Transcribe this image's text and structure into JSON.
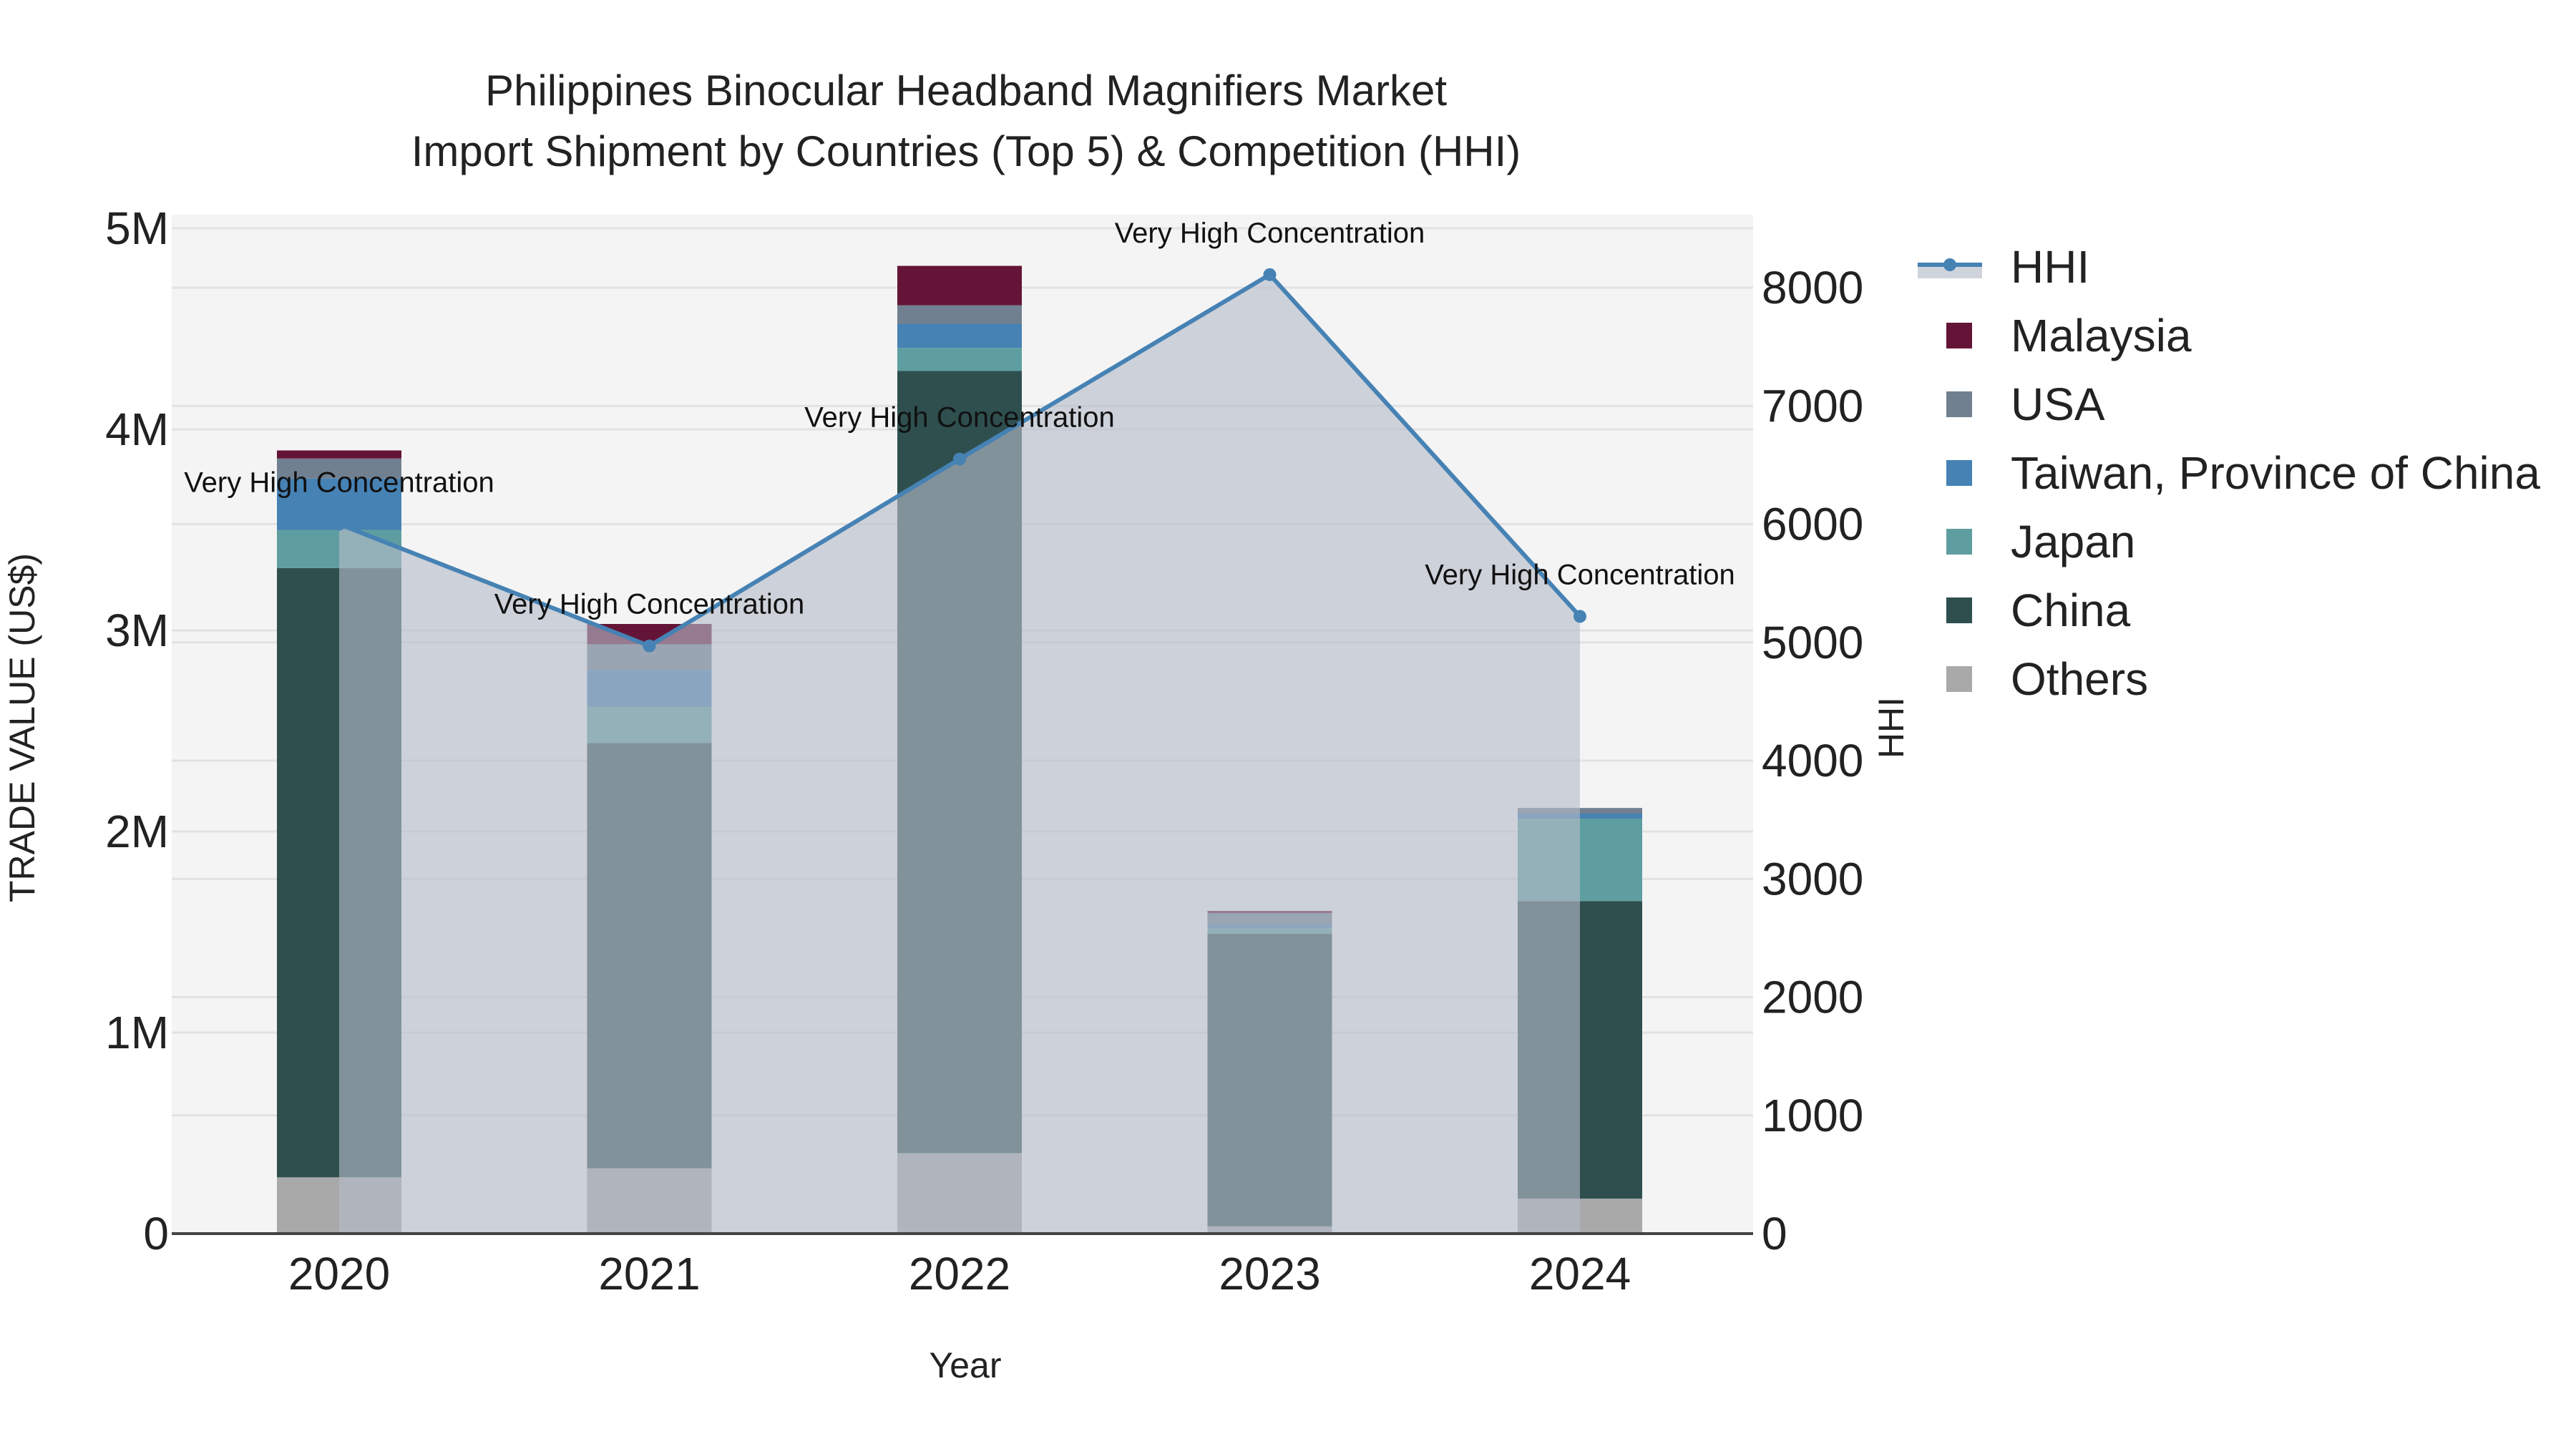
{
  "title": {
    "line1": "Philippines Binocular Headband Magnifiers Market",
    "line2": "Import Shipment by Countries (Top 5) & Competition (HHI)"
  },
  "axes": {
    "x_title": "Year",
    "y_left_title": "TRADE VALUE (US$)",
    "y_right_title": "HHI",
    "y_left_ticks": [
      "0",
      "1M",
      "2M",
      "3M",
      "4M",
      "5M"
    ],
    "y_right_ticks": [
      "0",
      "1000",
      "2000",
      "3000",
      "4000",
      "5000",
      "6000",
      "7000",
      "8000"
    ]
  },
  "legend": [
    {
      "label": "HHI",
      "type": "line",
      "color": "#4682b4"
    },
    {
      "label": "Malaysia",
      "type": "bar",
      "color": "#641436"
    },
    {
      "label": "USA",
      "type": "bar",
      "color": "#708090"
    },
    {
      "label": "Taiwan, Province of China",
      "type": "bar",
      "color": "#4682b4"
    },
    {
      "label": "Japan",
      "type": "bar",
      "color": "#5f9ea0"
    },
    {
      "label": "China",
      "type": "bar",
      "color": "#2f4f4f"
    },
    {
      "label": "Others",
      "type": "bar",
      "color": "#a9a9a9"
    }
  ],
  "chart_data": {
    "type": "bar",
    "stacked": true,
    "title": "Philippines Binocular Headband Magnifiers Market\nImport Shipment by Countries (Top 5) & Competition (HHI)",
    "xlabel": "Year",
    "ylabel": "TRADE VALUE (US$)",
    "y2label": "HHI",
    "categories": [
      "2020",
      "2021",
      "2022",
      "2023",
      "2024"
    ],
    "ylim": [
      0,
      5100000
    ],
    "y2lim": [
      0,
      8600
    ],
    "grid": true,
    "legend_position": "right",
    "series": [
      {
        "name": "Others",
        "color": "#a9a9a9",
        "values": [
          280000,
          325000,
          400000,
          36000,
          174000
        ]
      },
      {
        "name": "China",
        "color": "#2f4f4f",
        "values": [
          3030000,
          2115000,
          3890000,
          1455000,
          1480000
        ]
      },
      {
        "name": "Japan",
        "color": "#5f9ea0",
        "values": [
          190000,
          178000,
          115000,
          29000,
          410000
        ]
      },
      {
        "name": "Taiwan, Province of China",
        "color": "#4682b4",
        "values": [
          255000,
          185000,
          120000,
          17000,
          25000
        ]
      },
      {
        "name": "USA",
        "color": "#708090",
        "values": [
          100000,
          128000,
          92000,
          57000,
          28000
        ]
      },
      {
        "name": "Malaysia",
        "color": "#641436",
        "values": [
          40000,
          101000,
          196000,
          11000,
          0
        ]
      }
    ],
    "line_series": {
      "name": "HHI",
      "axis": "right",
      "color": "#4682b4",
      "fill": "tozeroy",
      "values": [
        6000,
        4970,
        6550,
        8110,
        5220
      ],
      "annotations": [
        "Very High Concentration",
        "Very High Concentration",
        "Very High Concentration",
        "Very High Concentration",
        "Very High Concentration"
      ]
    }
  }
}
